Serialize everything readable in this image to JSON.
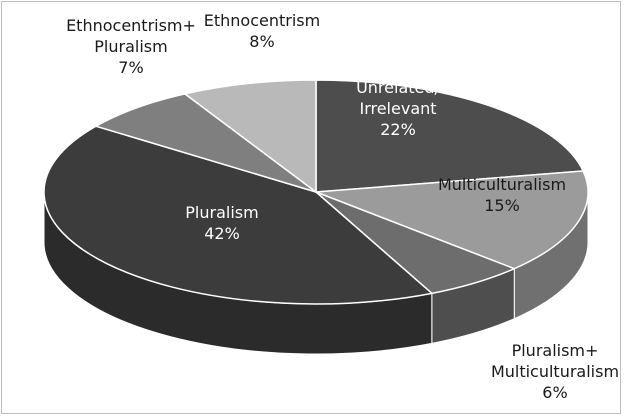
{
  "chart_data": {
    "type": "pie",
    "variant": "3d",
    "legend": "none",
    "slices": [
      {
        "label_lines": [
          "Unrelated/",
          "Irrelevant"
        ],
        "percent_label": "22%",
        "value": 22,
        "color": "#4d4d4d",
        "label_color": "#ffffff"
      },
      {
        "label_lines": [
          "Multiculturalism"
        ],
        "percent_label": "15%",
        "value": 15,
        "color": "#9b9b9b",
        "label_color": "#1a1a1a"
      },
      {
        "label_lines": [
          "Pluralism+",
          "Multiculturalism"
        ],
        "percent_label": "6%",
        "value": 6,
        "color": "#6d6d6d",
        "label_color": "#1a1a1a"
      },
      {
        "label_lines": [
          "Pluralism"
        ],
        "percent_label": "42%",
        "value": 42,
        "color": "#3c3c3c",
        "label_color": "#ffffff"
      },
      {
        "label_lines": [
          "Ethnocentrism+",
          "Pluralism"
        ],
        "percent_label": "7%",
        "value": 7,
        "color": "#7f7f7f",
        "label_color": "#1a1a1a"
      },
      {
        "label_lines": [
          "Ethnocentrism"
        ],
        "percent_label": "8%",
        "value": 8,
        "color": "#b9b9b9",
        "label_color": "#1a1a1a"
      }
    ]
  }
}
